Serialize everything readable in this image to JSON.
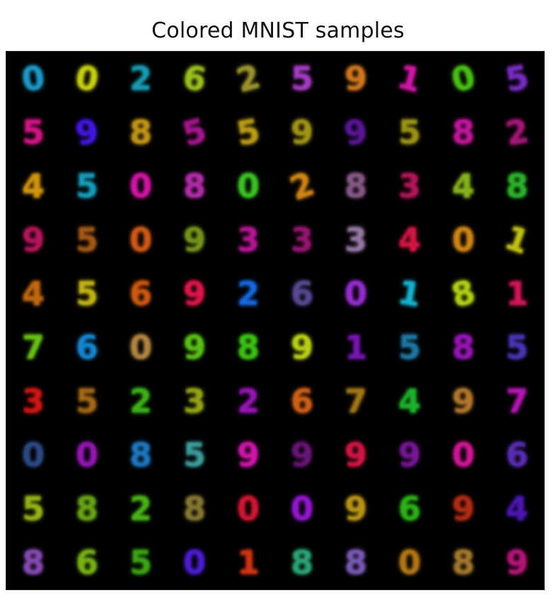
{
  "title": "Colored MNIST samples",
  "grid": {
    "rows": 10,
    "cols": 10,
    "background": "#000000",
    "samples": [
      {
        "digit": "0",
        "color": "#1fa6d8",
        "rot": -8
      },
      {
        "digit": "0",
        "color": "#d8e010",
        "rot": 10
      },
      {
        "digit": "2",
        "color": "#18a8c0",
        "rot": 0
      },
      {
        "digit": "6",
        "color": "#a8d020",
        "rot": 10
      },
      {
        "digit": "2",
        "color": "#a8a030",
        "rot": -15
      },
      {
        "digit": "5",
        "color": "#b040d0",
        "rot": 0
      },
      {
        "digit": "9",
        "color": "#e08020",
        "rot": 0
      },
      {
        "digit": "1",
        "color": "#e018b0",
        "rot": 15
      },
      {
        "digit": "0",
        "color": "#50d018",
        "rot": -15
      },
      {
        "digit": "5",
        "color": "#8030d0",
        "rot": -10
      },
      {
        "digit": "5",
        "color": "#e01890",
        "rot": 0
      },
      {
        "digit": "9",
        "color": "#4818f0",
        "rot": -10
      },
      {
        "digit": "8",
        "color": "#d0a018",
        "rot": 0
      },
      {
        "digit": "5",
        "color": "#b01898",
        "rot": -15
      },
      {
        "digit": "5",
        "color": "#c8a818",
        "rot": -10
      },
      {
        "digit": "9",
        "color": "#b0a018",
        "rot": 0
      },
      {
        "digit": "9",
        "color": "#6018a0",
        "rot": -10
      },
      {
        "digit": "5",
        "color": "#a8a018",
        "rot": 0
      },
      {
        "digit": "8",
        "color": "#d018a8",
        "rot": 0
      },
      {
        "digit": "2",
        "color": "#b01880",
        "rot": -10
      },
      {
        "digit": "4",
        "color": "#e0a010",
        "rot": 0
      },
      {
        "digit": "5",
        "color": "#18a8c8",
        "rot": 0
      },
      {
        "digit": "0",
        "color": "#e018b0",
        "rot": 0
      },
      {
        "digit": "8",
        "color": "#c030b8",
        "rot": 0
      },
      {
        "digit": "0",
        "color": "#40d028",
        "rot": 0
      },
      {
        "digit": "2",
        "color": "#e09018",
        "rot": -20
      },
      {
        "digit": "8",
        "color": "#906090",
        "rot": 0
      },
      {
        "digit": "3",
        "color": "#c01860",
        "rot": 0
      },
      {
        "digit": "4",
        "color": "#90c020",
        "rot": 0
      },
      {
        "digit": "8",
        "color": "#30c030",
        "rot": 0
      },
      {
        "digit": "9",
        "color": "#c01860",
        "rot": 0
      },
      {
        "digit": "5",
        "color": "#b06018",
        "rot": 0
      },
      {
        "digit": "0",
        "color": "#e06018",
        "rot": 0
      },
      {
        "digit": "9",
        "color": "#80a020",
        "rot": 0
      },
      {
        "digit": "3",
        "color": "#c018a0",
        "rot": 0
      },
      {
        "digit": "3",
        "color": "#a01878",
        "rot": 0
      },
      {
        "digit": "3",
        "color": "#a080b0",
        "rot": 0
      },
      {
        "digit": "4",
        "color": "#e01848",
        "rot": 0
      },
      {
        "digit": "0",
        "color": "#e09018",
        "rot": 0
      },
      {
        "digit": "1",
        "color": "#d0d018",
        "rot": 20
      },
      {
        "digit": "4",
        "color": "#d07010",
        "rot": 0
      },
      {
        "digit": "5",
        "color": "#d0c018",
        "rot": 0
      },
      {
        "digit": "6",
        "color": "#e06010",
        "rot": 0
      },
      {
        "digit": "9",
        "color": "#f01850",
        "rot": 0
      },
      {
        "digit": "2",
        "color": "#1870f0",
        "rot": 0
      },
      {
        "digit": "6",
        "color": "#6050a0",
        "rot": 0
      },
      {
        "digit": "0",
        "color": "#a030e0",
        "rot": 0
      },
      {
        "digit": "1",
        "color": "#18c0e0",
        "rot": 10
      },
      {
        "digit": "8",
        "color": "#c0e018",
        "rot": -15
      },
      {
        "digit": "1",
        "color": "#e01860",
        "rot": 0
      },
      {
        "digit": "7",
        "color": "#70d018",
        "rot": 0
      },
      {
        "digit": "6",
        "color": "#1890e0",
        "rot": 0
      },
      {
        "digit": "0",
        "color": "#c09048",
        "rot": 0
      },
      {
        "digit": "9",
        "color": "#60d018",
        "rot": 0
      },
      {
        "digit": "8",
        "color": "#40d018",
        "rot": 0
      },
      {
        "digit": "9",
        "color": "#c8e018",
        "rot": 0
      },
      {
        "digit": "1",
        "color": "#8018c0",
        "rot": 0
      },
      {
        "digit": "5",
        "color": "#2080b0",
        "rot": 0
      },
      {
        "digit": "8",
        "color": "#a018c0",
        "rot": 0
      },
      {
        "digit": "5",
        "color": "#5038c0",
        "rot": 0
      },
      {
        "digit": "3",
        "color": "#e01818",
        "rot": 0
      },
      {
        "digit": "5",
        "color": "#b07018",
        "rot": 0
      },
      {
        "digit": "2",
        "color": "#40c018",
        "rot": 0
      },
      {
        "digit": "3",
        "color": "#a0b018",
        "rot": 0
      },
      {
        "digit": "2",
        "color": "#a018c0",
        "rot": 0
      },
      {
        "digit": "6",
        "color": "#e06818",
        "rot": 0
      },
      {
        "digit": "7",
        "color": "#b08018",
        "rot": 0
      },
      {
        "digit": "4",
        "color": "#20c030",
        "rot": 0
      },
      {
        "digit": "9",
        "color": "#c08030",
        "rot": 0
      },
      {
        "digit": "7",
        "color": "#c018c0",
        "rot": 0
      },
      {
        "digit": "0",
        "color": "#305090",
        "rot": 0
      },
      {
        "digit": "0",
        "color": "#a018c0",
        "rot": 0
      },
      {
        "digit": "8",
        "color": "#2080d0",
        "rot": 0
      },
      {
        "digit": "5",
        "color": "#40a8a8",
        "rot": 0
      },
      {
        "digit": "9",
        "color": "#e018b8",
        "rot": 0
      },
      {
        "digit": "9",
        "color": "#701880",
        "rot": 0
      },
      {
        "digit": "9",
        "color": "#e01848",
        "rot": 0
      },
      {
        "digit": "9",
        "color": "#8018a0",
        "rot": 0
      },
      {
        "digit": "0",
        "color": "#e018a0",
        "rot": 0
      },
      {
        "digit": "6",
        "color": "#6030c0",
        "rot": 0
      },
      {
        "digit": "5",
        "color": "#a0c018",
        "rot": 0
      },
      {
        "digit": "8",
        "color": "#70b018",
        "rot": 0
      },
      {
        "digit": "2",
        "color": "#50c018",
        "rot": 0
      },
      {
        "digit": "8",
        "color": "#908038",
        "rot": 0
      },
      {
        "digit": "0",
        "color": "#e01838",
        "rot": 0
      },
      {
        "digit": "0",
        "color": "#a018e0",
        "rot": 0
      },
      {
        "digit": "9",
        "color": "#c8a018",
        "rot": 0
      },
      {
        "digit": "6",
        "color": "#30c018",
        "rot": 0
      },
      {
        "digit": "9",
        "color": "#c03018",
        "rot": 0
      },
      {
        "digit": "4",
        "color": "#5018c0",
        "rot": 0
      },
      {
        "digit": "8",
        "color": "#9050c0",
        "rot": 0
      },
      {
        "digit": "6",
        "color": "#80c018",
        "rot": 0
      },
      {
        "digit": "5",
        "color": "#40b018",
        "rot": 0
      },
      {
        "digit": "0",
        "color": "#5020e0",
        "rot": 0
      },
      {
        "digit": "1",
        "color": "#e03818",
        "rot": 0
      },
      {
        "digit": "8",
        "color": "#30b080",
        "rot": 0
      },
      {
        "digit": "8",
        "color": "#8060c0",
        "rot": 0
      },
      {
        "digit": "0",
        "color": "#c08018",
        "rot": 0
      },
      {
        "digit": "8",
        "color": "#b08030",
        "rot": 0
      },
      {
        "digit": "9",
        "color": "#c01880",
        "rot": 0
      }
    ]
  }
}
